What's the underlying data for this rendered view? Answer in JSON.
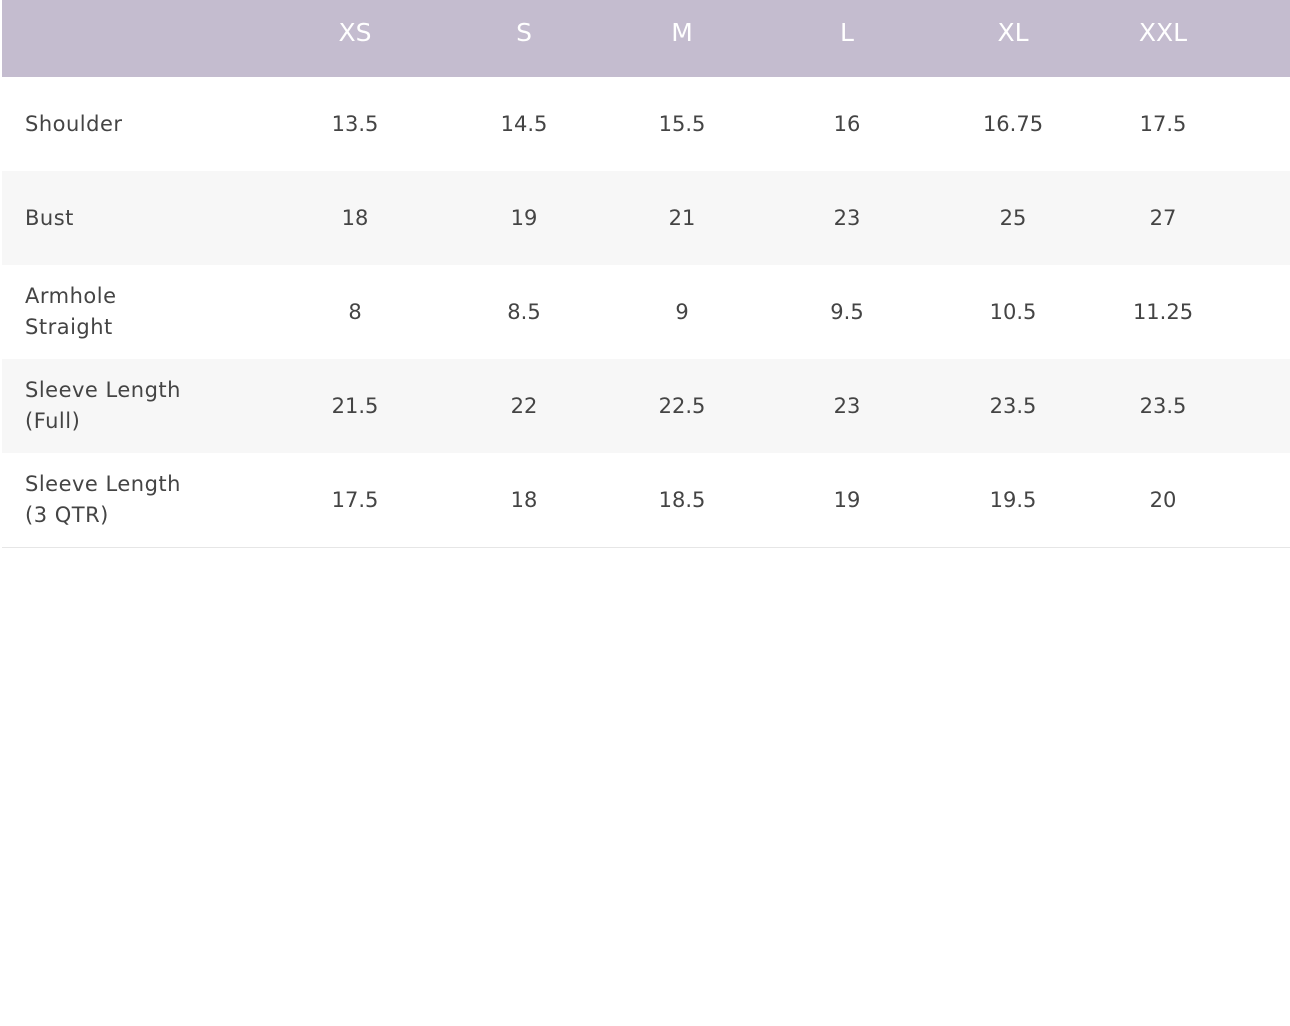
{
  "table": {
    "columns": [
      "XS",
      "S",
      "M",
      "L",
      "XL",
      "XXL"
    ],
    "rows": [
      {
        "label": "Shoulder",
        "values": [
          13.5,
          14.5,
          15.5,
          16,
          16.75,
          17.5
        ]
      },
      {
        "label": "Bust",
        "values": [
          18,
          19,
          21,
          23,
          25,
          27
        ]
      },
      {
        "label": "Armhole Straight",
        "values": [
          8,
          8.5,
          9,
          9.5,
          10.5,
          11.25
        ]
      },
      {
        "label": "Sleeve Length (Full)",
        "values": [
          21.5,
          22,
          22.5,
          23,
          23.5,
          23.5
        ]
      },
      {
        "label": "Sleeve Length (3 QTR)",
        "values": [
          17.5,
          18,
          18.5,
          19,
          19.5,
          20
        ]
      }
    ]
  }
}
